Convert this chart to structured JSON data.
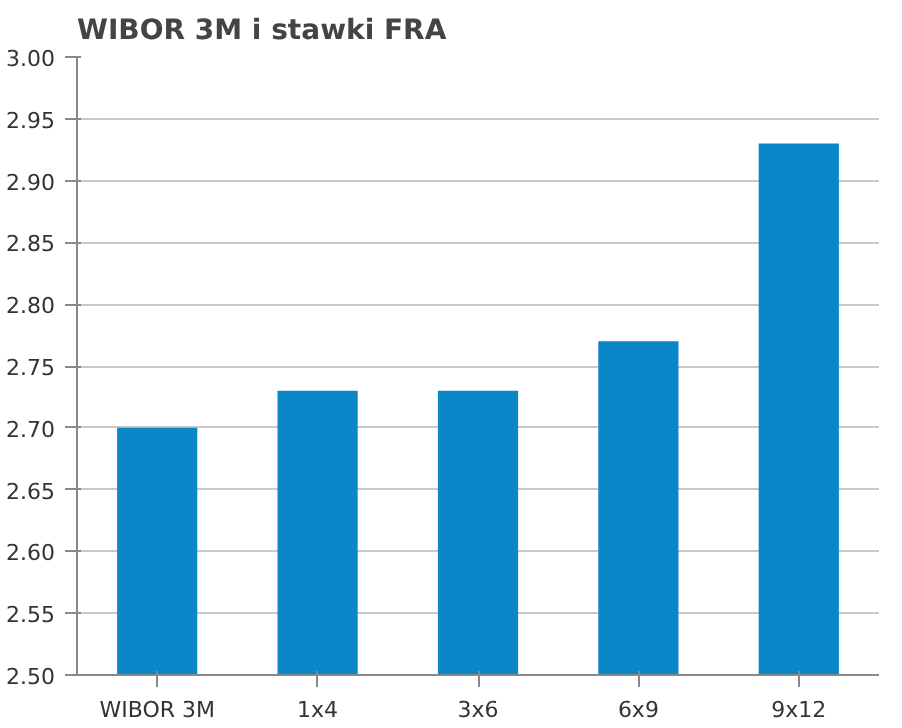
{
  "chart_data": {
    "type": "bar",
    "title": "WIBOR 3M i stawki FRA",
    "categories": [
      "WIBOR 3M",
      "1x4",
      "3x6",
      "6x9",
      "9x12"
    ],
    "values": [
      2.7,
      2.73,
      2.73,
      2.77,
      2.93
    ],
    "color": "#0a87c8",
    "ylim": [
      2.5,
      3.0
    ],
    "yticks": [
      {
        "value": 2.5,
        "label": "2.50"
      },
      {
        "value": 2.55,
        "label": "2.55"
      },
      {
        "value": 2.6,
        "label": "2.60"
      },
      {
        "value": 2.65,
        "label": "2.65"
      },
      {
        "value": 2.7,
        "label": "2.70"
      },
      {
        "value": 2.75,
        "label": "2.75"
      },
      {
        "value": 2.8,
        "label": "2.80"
      },
      {
        "value": 2.85,
        "label": "2.85"
      },
      {
        "value": 2.9,
        "label": "2.90"
      },
      {
        "value": 2.95,
        "label": "2.95"
      },
      {
        "value": 3.0,
        "label": "3.00"
      }
    ],
    "grid": "y"
  }
}
